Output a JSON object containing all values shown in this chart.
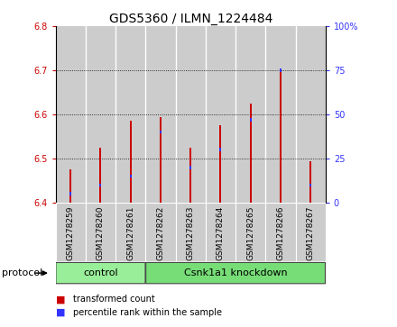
{
  "title": "GDS5360 / ILMN_1224484",
  "samples": [
    "GSM1278259",
    "GSM1278260",
    "GSM1278261",
    "GSM1278262",
    "GSM1278263",
    "GSM1278264",
    "GSM1278265",
    "GSM1278266",
    "GSM1278267"
  ],
  "transformed_count": [
    6.475,
    6.525,
    6.585,
    6.595,
    6.525,
    6.575,
    6.625,
    6.7,
    6.495
  ],
  "percentile_rank": [
    5,
    10,
    15,
    40,
    20,
    30,
    47,
    75,
    10
  ],
  "y_min": 6.4,
  "y_max": 6.8,
  "y_ticks": [
    6.4,
    6.5,
    6.6,
    6.7,
    6.8
  ],
  "right_y_ticks": [
    0,
    25,
    50,
    75,
    100
  ],
  "bar_color": "#cc0000",
  "blue_color": "#3333ff",
  "bar_width": 0.06,
  "control_samples": 3,
  "control_label": "control",
  "knockdown_label": "Csnk1a1 knockdown",
  "protocol_label": "protocol",
  "legend_red": "transformed count",
  "legend_blue": "percentile rank within the sample",
  "control_color": "#99ee99",
  "knockdown_color": "#77dd77",
  "cell_bg": "#cccccc",
  "plot_bg": "#ffffff",
  "title_fontsize": 10,
  "tick_fontsize": 7,
  "label_fontsize": 8
}
